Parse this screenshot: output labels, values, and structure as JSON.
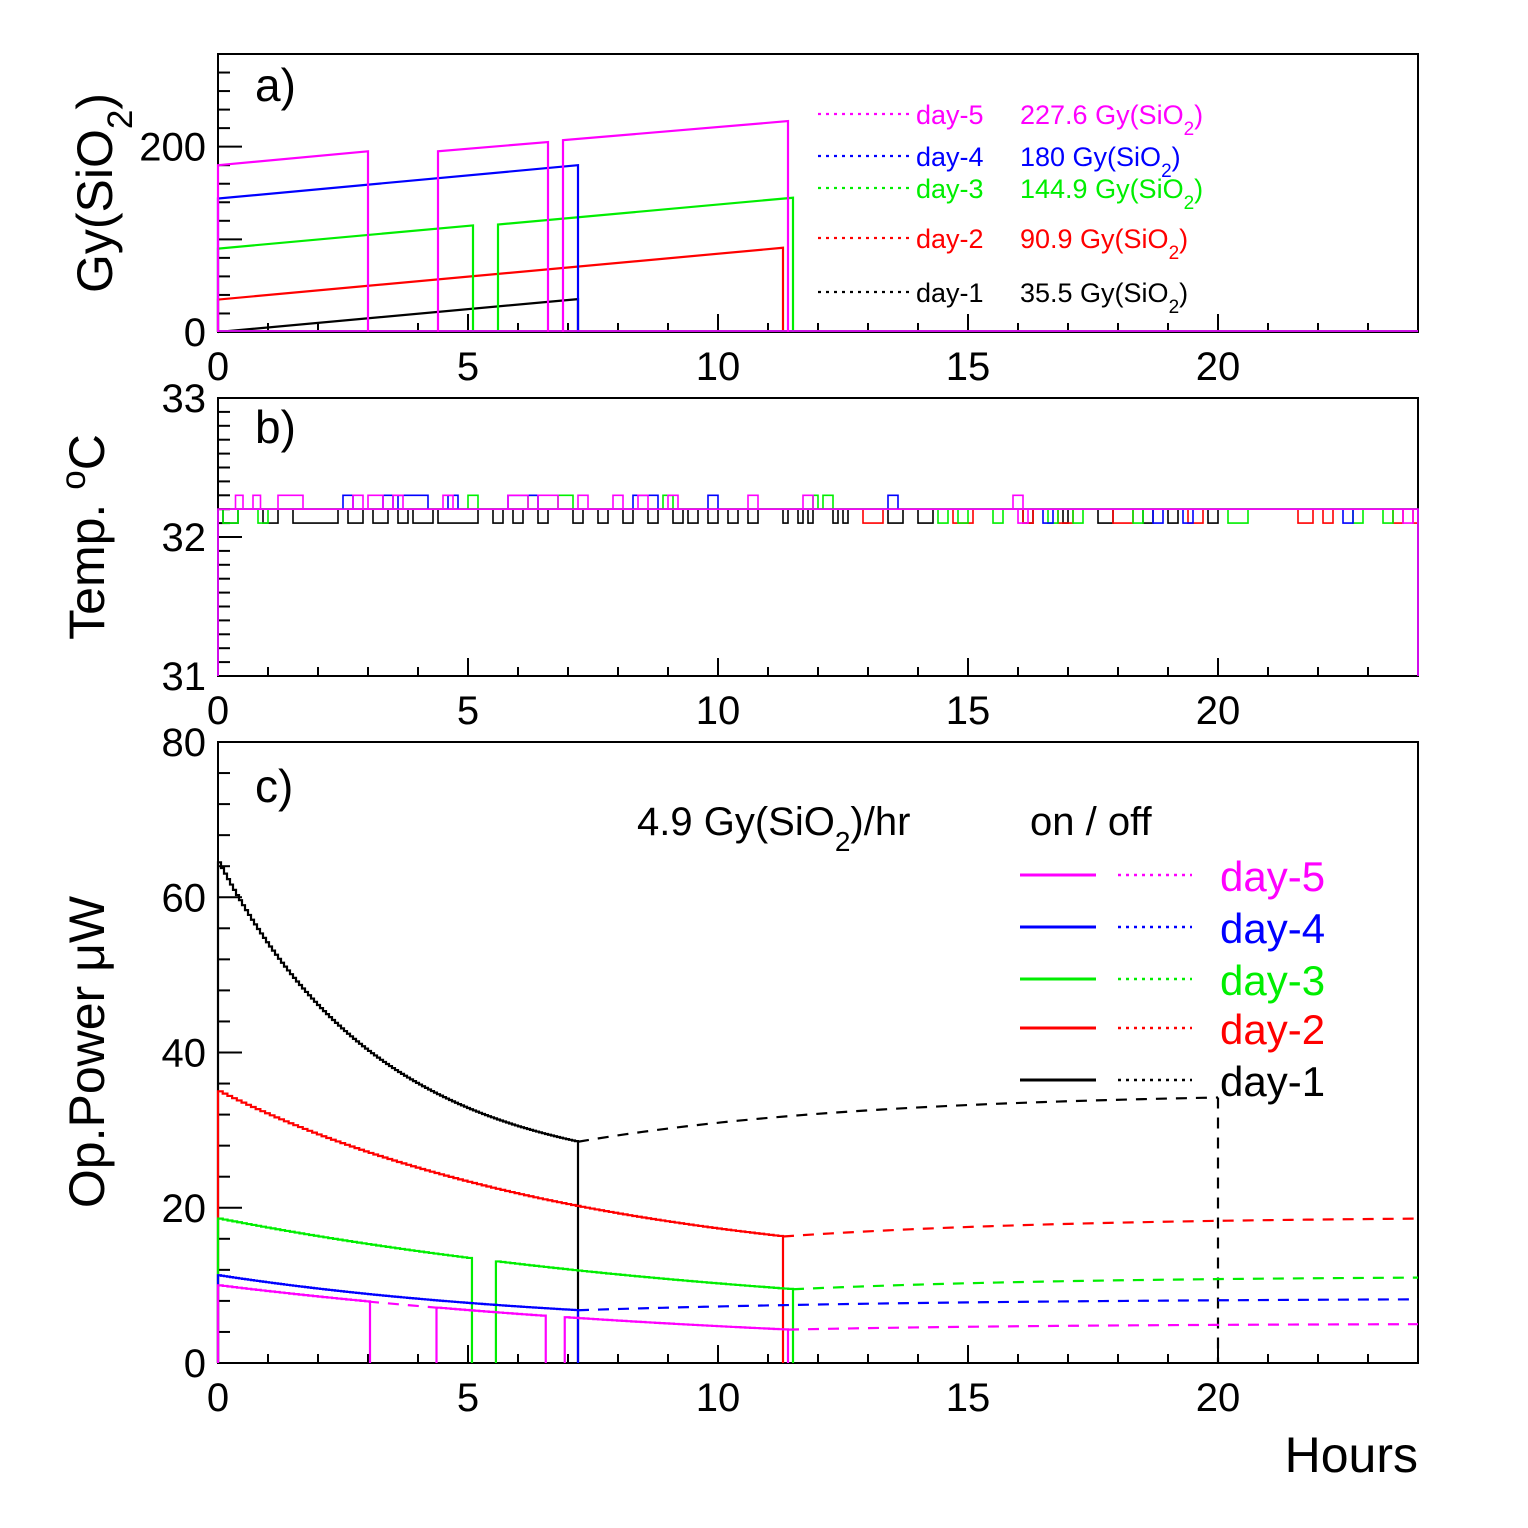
{
  "colors": {
    "day-1": "#000000",
    "day-2": "#ff0000",
    "day-3": "#00ee00",
    "day-4": "#0000ff",
    "day-5": "#ff00ff"
  },
  "x_axis_label": "Hours",
  "chart_data": [
    {
      "panel": "a)",
      "type": "line",
      "ylabel_main": "Gy(SiO",
      "ylabel_sub": "2",
      "ylabel_tail": ")",
      "xlim": [
        0,
        24
      ],
      "ylim": [
        0,
        300
      ],
      "xticks": [
        0,
        5,
        10,
        15,
        20
      ],
      "yticks": [
        0,
        200
      ],
      "legend": [
        {
          "day": "day-5",
          "label": "day-5",
          "value": "227.6 Gy(SiO",
          "sub": "2",
          "tail": ")"
        },
        {
          "day": "day-4",
          "label": "day-4",
          "value": "180 Gy(SiO",
          "sub": "2",
          "tail": ")"
        },
        {
          "day": "day-3",
          "label": "day-3",
          "value": "144.9 Gy(SiO",
          "sub": "2",
          "tail": ")"
        },
        {
          "day": "day-2",
          "label": "day-2",
          "value": "90.9 Gy(SiO",
          "sub": "2",
          "tail": ")"
        },
        {
          "day": "day-1",
          "label": "day-1",
          "value": "35.5 Gy(SiO",
          "sub": "2",
          "tail": ")"
        }
      ],
      "series": [
        {
          "day": "day-1",
          "segments": [
            [
              0,
              7.2,
              0,
              35.5
            ]
          ]
        },
        {
          "day": "day-2",
          "segments": [
            [
              0,
              11.3,
              35,
              90.9
            ]
          ]
        },
        {
          "day": "day-3",
          "segments": [
            [
              0,
              5.1,
              90,
              115
            ],
            [
              5.6,
              11.5,
              116,
              144.9
            ]
          ]
        },
        {
          "day": "day-4",
          "segments": [
            [
              0,
              7.2,
              144,
              180
            ]
          ]
        },
        {
          "day": "day-5",
          "segments": [
            [
              0,
              3.0,
              180,
              195
            ],
            [
              4.4,
              6.6,
              195,
              205
            ],
            [
              6.9,
              11.4,
              207,
              227.6
            ]
          ]
        }
      ]
    },
    {
      "panel": "b)",
      "type": "line",
      "ylabel_main": "Temp. ",
      "ylabel_sup": "o",
      "ylabel_tail": "C",
      "xlim": [
        0,
        24
      ],
      "ylim": [
        31,
        33
      ],
      "xticks": [
        0,
        5,
        10,
        15,
        20
      ],
      "yticks": [
        31,
        32,
        33
      ],
      "baseline": 32.2,
      "series": [
        {
          "day": "day-1",
          "dips": [
            [
              0.1,
              0.4
            ],
            [
              0.9,
              1.2
            ],
            [
              1.5,
              2.4
            ],
            [
              2.6,
              2.9
            ],
            [
              3.1,
              3.4
            ],
            [
              3.6,
              3.8
            ],
            [
              3.9,
              4.3
            ],
            [
              4.4,
              5.2
            ],
            [
              5.5,
              5.7
            ],
            [
              5.9,
              6.1
            ],
            [
              6.4,
              6.6
            ],
            [
              7.1,
              7.3
            ],
            [
              7.6,
              7.8
            ],
            [
              8.1,
              8.3
            ],
            [
              8.6,
              8.8
            ],
            [
              9.1,
              9.3
            ],
            [
              9.4,
              9.6
            ],
            [
              9.8,
              10.0
            ],
            [
              10.2,
              10.4
            ],
            [
              10.6,
              10.8
            ],
            [
              11.3,
              11.4
            ],
            [
              11.6,
              11.7
            ],
            [
              11.8,
              11.9
            ],
            [
              12.3,
              12.4
            ],
            [
              12.5,
              12.6
            ],
            [
              13.4,
              13.7
            ],
            [
              14.0,
              14.3
            ],
            [
              16.1,
              16.3
            ],
            [
              16.9,
              17.0
            ],
            [
              17.6,
              17.9
            ],
            [
              18.5,
              18.7
            ],
            [
              19.0,
              19.2
            ],
            [
              19.8,
              20.0
            ]
          ]
        },
        {
          "day": "day-2",
          "dips": [
            [
              12.9,
              13.3
            ],
            [
              14.7,
              15.1
            ],
            [
              16.1,
              16.3
            ],
            [
              16.8,
              17.1
            ],
            [
              17.9,
              18.3
            ],
            [
              19.4,
              19.7
            ],
            [
              21.6,
              21.9
            ],
            [
              22.1,
              22.3
            ],
            [
              23.5,
              23.7
            ],
            [
              23.9,
              24.0
            ]
          ]
        },
        {
          "day": "day-3",
          "dips": [
            [
              0.1,
              0.4
            ],
            [
              0.8,
              1.0
            ],
            [
              14.4,
              14.6
            ],
            [
              14.8,
              15.0
            ],
            [
              15.5,
              15.7
            ],
            [
              16.6,
              16.8
            ],
            [
              17.1,
              17.3
            ],
            [
              18.3,
              18.5
            ],
            [
              20.2,
              20.6
            ],
            [
              22.7,
              22.9
            ],
            [
              23.3,
              23.5
            ]
          ],
          "bumps": [
            [
              5.0,
              5.2
            ],
            [
              6.2,
              6.4
            ],
            [
              6.8,
              7.1
            ],
            [
              8.9,
              9.1
            ],
            [
              11.9,
              12.0
            ],
            [
              12.1,
              12.3
            ]
          ]
        },
        {
          "day": "day-4",
          "dips": [
            [
              16.5,
              16.7
            ],
            [
              18.7,
              18.9
            ],
            [
              19.3,
              19.5
            ],
            [
              22.5,
              22.7
            ]
          ],
          "bumps": [
            [
              2.5,
              2.7
            ],
            [
              3.3,
              3.5
            ],
            [
              3.6,
              4.2
            ],
            [
              4.6,
              4.8
            ],
            [
              5.8,
              6.4
            ],
            [
              8.3,
              8.8
            ],
            [
              9.8,
              10.0
            ],
            [
              13.4,
              13.6
            ]
          ]
        },
        {
          "day": "day-5",
          "dips": [
            [
              16.0,
              16.2
            ],
            [
              23.7,
              23.9
            ]
          ],
          "bumps": [
            [
              0.35,
              0.5
            ],
            [
              0.7,
              0.85
            ],
            [
              1.2,
              1.7
            ],
            [
              2.7,
              2.9
            ],
            [
              3.0,
              3.3
            ],
            [
              3.5,
              3.7
            ],
            [
              4.5,
              4.7
            ],
            [
              5.8,
              6.2
            ],
            [
              6.4,
              6.8
            ],
            [
              7.2,
              7.4
            ],
            [
              7.9,
              8.1
            ],
            [
              8.4,
              8.6
            ],
            [
              9.0,
              9.2
            ],
            [
              10.6,
              10.8
            ],
            [
              11.7,
              11.9
            ],
            [
              15.9,
              16.1
            ]
          ]
        }
      ]
    },
    {
      "panel": "c)",
      "type": "line",
      "ylabel": "Op.Power μW",
      "xlim": [
        0,
        24
      ],
      "ylim": [
        0,
        80
      ],
      "xticks": [
        0,
        5,
        10,
        15,
        20
      ],
      "yticks": [
        0,
        20,
        40,
        60,
        80
      ],
      "annotation_rate_main": "4.9 Gy(SiO",
      "annotation_rate_sub": "2",
      "annotation_rate_tail": ")/hr",
      "annotation_onoff": "on / off",
      "legend": [
        {
          "day": "day-5",
          "label": "day-5"
        },
        {
          "day": "day-4",
          "label": "day-4"
        },
        {
          "day": "day-3",
          "label": "day-3"
        },
        {
          "day": "day-2",
          "label": "day-2"
        },
        {
          "day": "day-1",
          "label": "day-1"
        }
      ],
      "series": [
        {
          "day": "day-1",
          "on_start": 64.5,
          "on_end": 28.5,
          "on_t": 7.2,
          "on_curve": 2.2,
          "off_end_t": 20.0,
          "off_end": 34.2
        },
        {
          "day": "day-2",
          "on_start": 35.0,
          "on_end": 16.3,
          "on_t": 11.3,
          "on_curve": 1.5,
          "off_end_t": 24.0,
          "off_end": 18.6
        },
        {
          "day": "day-3",
          "on_start": 18.6,
          "on_end": 9.5,
          "on_t": 11.5,
          "on_curve": 1.0,
          "off_end_t": 24.0,
          "off_end": 11.0,
          "gaps": [
            [
              5.1,
              5.6
            ]
          ]
        },
        {
          "day": "day-4",
          "on_start": 11.3,
          "on_end": 6.8,
          "on_t": 7.2,
          "on_curve": 1.0,
          "off_end_t": 24.0,
          "off_end": 8.2
        },
        {
          "day": "day-5",
          "on_start": 10.0,
          "on_end": 4.3,
          "on_t": 11.4,
          "on_curve": 1.0,
          "off_end_t": 24.0,
          "off_end": 5.0,
          "gaps": [
            [
              3.0,
              4.4
            ],
            [
              6.6,
              6.9
            ]
          ]
        }
      ]
    }
  ]
}
